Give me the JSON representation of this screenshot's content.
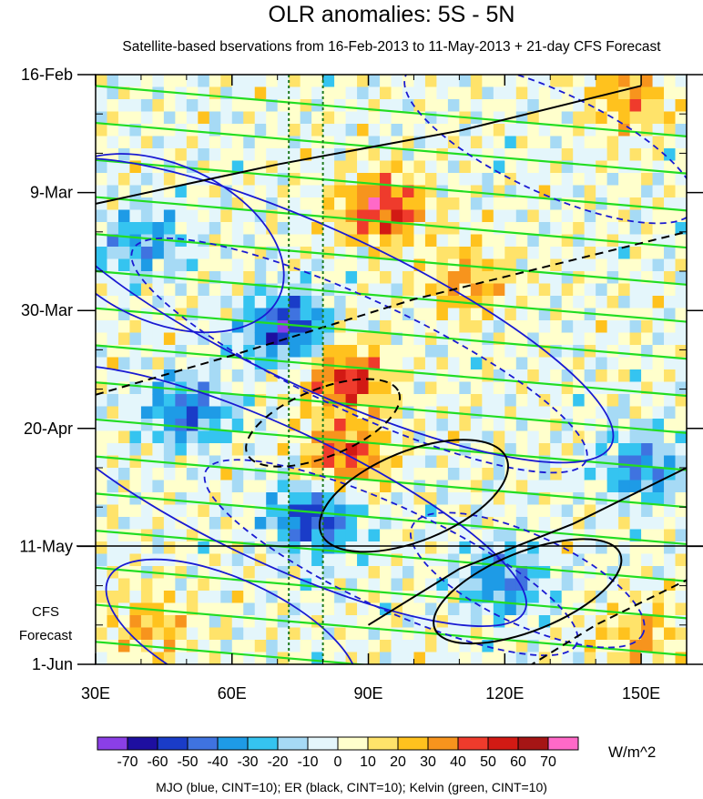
{
  "chart_data": {
    "type": "heatmap",
    "title": "OLR anomalies: 5S - 5N",
    "subtitle": "Satellite-based bservations from 16-Feb-2013 to 11-May-2013 + 21-day CFS Forecast",
    "xlabel": "",
    "ylabel": "",
    "x_ticks": [
      "30E",
      "60E",
      "90E",
      "120E",
      "150E"
    ],
    "x_tick_values": [
      30,
      60,
      90,
      120,
      150
    ],
    "xlim": [
      30,
      160
    ],
    "y_ticks": [
      "16-Feb",
      "9-Mar",
      "30-Mar",
      "20-Apr",
      "11-May",
      "1-Jun"
    ],
    "y_tick_days": [
      0,
      21,
      42,
      63,
      84,
      105
    ],
    "ylim_days": [
      0,
      105
    ],
    "forecast_label": [
      "CFS",
      "Forecast"
    ],
    "forecast_boundary": "11-May",
    "reference_longitudes": [
      72.5,
      80
    ],
    "colorbar": {
      "levels": [
        "-70",
        "-60",
        "-50",
        "-40",
        "-30",
        "-20",
        "-10",
        "0",
        "10",
        "20",
        "30",
        "40",
        "50",
        "60",
        "70"
      ],
      "colors": [
        "#8B3FE6",
        "#1E0FA0",
        "#1A3CC8",
        "#3F73E0",
        "#1E9BE6",
        "#35C4F0",
        "#A6DAF5",
        "#E4F6FB",
        "#FFFFCC",
        "#FFE36A",
        "#FFC21E",
        "#F7941D",
        "#EF3B2C",
        "#D21A14",
        "#A51515",
        "#FF69C8"
      ],
      "units": "W/m^2"
    },
    "footnote": "MJO (blue, CINT=10); ER (black, CINT=10); Kelvin (green, CINT=10)",
    "contour_colors": {
      "mjo": "#1A1AD2",
      "er": "#000000",
      "kelvin": "#22DD22"
    },
    "anomaly_features": [
      {
        "label": "positive",
        "lon": 93,
        "day": 24,
        "value": 55
      },
      {
        "label": "positive",
        "lon": 85,
        "day": 54,
        "value": 50
      },
      {
        "label": "positive",
        "lon": 85,
        "day": 68,
        "value": 45
      },
      {
        "label": "positive",
        "lon": 112,
        "day": 37,
        "value": 30
      },
      {
        "label": "positive",
        "lon": 42,
        "day": 98,
        "value": 25
      },
      {
        "label": "positive",
        "lon": 150,
        "day": 100,
        "value": 25
      },
      {
        "label": "positive",
        "lon": 147,
        "day": 4,
        "value": 30
      },
      {
        "label": "negative",
        "lon": 72,
        "day": 45,
        "value": -60
      },
      {
        "label": "negative",
        "lon": 78,
        "day": 79,
        "value": -55
      },
      {
        "label": "negative",
        "lon": 50,
        "day": 60,
        "value": -45
      },
      {
        "label": "negative",
        "lon": 120,
        "day": 90,
        "value": -40
      },
      {
        "label": "negative",
        "lon": 150,
        "day": 70,
        "value": -40
      },
      {
        "label": "negative",
        "lon": 40,
        "day": 30,
        "value": -35
      }
    ]
  }
}
